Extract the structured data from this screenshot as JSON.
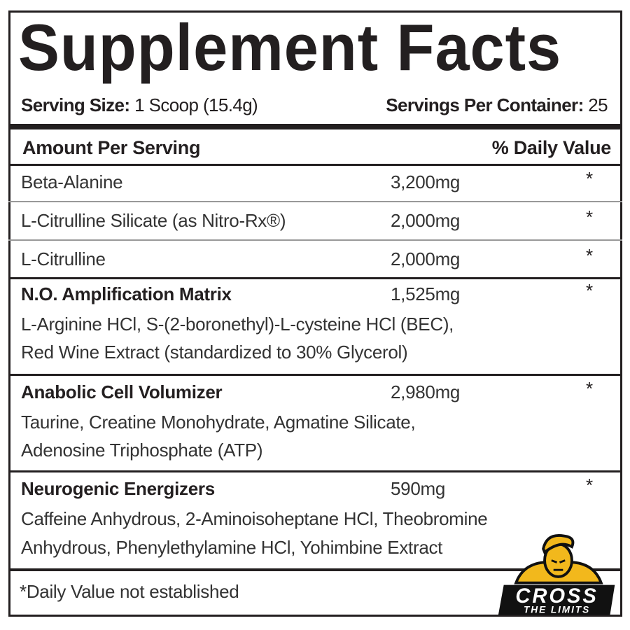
{
  "title": "Supplement Facts",
  "serving_size_label": "Serving Size:",
  "serving_size_value": "1 Scoop (15.4g)",
  "servings_label": "Servings Per Container:",
  "servings_value": "25",
  "header": {
    "amount": "Amount Per Serving",
    "dv": "% Daily Value"
  },
  "rows": [
    {
      "name": "Beta-Alanine",
      "amount": "3,200mg",
      "dv": "*"
    },
    {
      "name": "L-Citrulline Silicate (as Nitro-Rx®)",
      "amount": "2,000mg",
      "dv": "*"
    },
    {
      "name": "L-Citrulline",
      "amount": "2,000mg",
      "dv": "*"
    },
    {
      "name": "N.O. Amplification Matrix",
      "amount": "1,525mg",
      "dv": "*",
      "desc": [
        "L-Arginine HCl, S-(2-boronethyl)-L-cysteine HCl (BEC),",
        "Red Wine Extract (standardized to 30% Glycerol)"
      ]
    },
    {
      "name": "Anabolic Cell Volumizer",
      "amount": "2,980mg",
      "dv": "*",
      "desc": [
        "Taurine, Creatine Monohydrate, Agmatine Silicate,",
        "Adenosine Triphosphate (ATP)"
      ]
    },
    {
      "name": "Neurogenic Energizers",
      "amount": "590mg",
      "dv": "*",
      "desc": [
        "Caffeine Anhydrous, 2-Aminoisoheptane HCl, Theobromine",
        "Anhydrous, Phenylethylamine HCl, Yohimbine Extract"
      ]
    }
  ],
  "footnote": "*Daily Value not established",
  "logo": {
    "line1": "CROSS",
    "line2": "THE LIMITS",
    "accent": "#f2b81c"
  }
}
